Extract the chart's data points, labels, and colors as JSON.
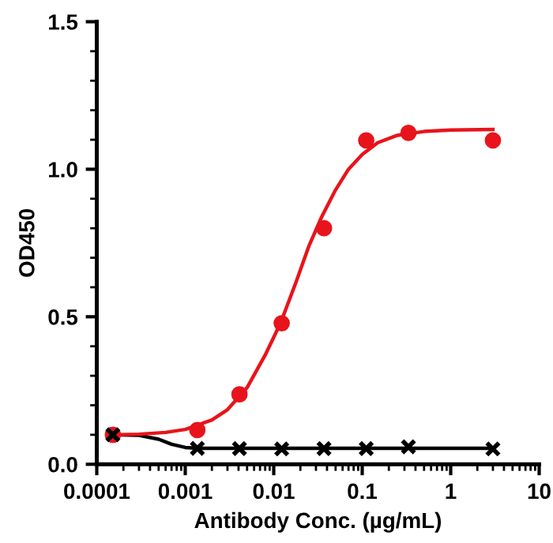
{
  "chart_data": {
    "type": "scatter",
    "xlabel": "Antibody Conc. (µg/mL)",
    "ylabel": "OD450",
    "log": "x",
    "grid": false,
    "legend": false,
    "xlim": [
      0.0001,
      10
    ],
    "xticks": [
      0.0001,
      0.001,
      0.01,
      0.1,
      1,
      10
    ],
    "ylim": [
      0,
      1.5
    ],
    "yticks": [
      {
        "value": 0,
        "label": "0.0"
      },
      {
        "value": 0.5,
        "label": "0.5"
      },
      {
        "value": 1,
        "label": "1.0"
      },
      {
        "value": 1.5,
        "label": "1.5"
      }
    ],
    "series": [
      {
        "type": "line",
        "color": "#000000",
        "marker": "none",
        "x": [
          0.00015,
          0.0003,
          0.0005,
          0.0007,
          0.001,
          0.0014,
          3
        ],
        "values": [
          0.1,
          0.098,
          0.085,
          0.068,
          0.057,
          0.054,
          0.054
        ]
      },
      {
        "type": "line",
        "color": "#e8141b",
        "marker": "none",
        "x": [
          0.00015,
          0.0003,
          0.0006,
          0.001,
          0.002,
          0.003,
          0.005,
          0.008,
          0.012,
          0.018,
          0.025,
          0.035,
          0.05,
          0.07,
          0.1,
          0.15,
          0.25,
          0.5,
          1,
          3
        ],
        "values": [
          0.1,
          0.102,
          0.108,
          0.118,
          0.15,
          0.185,
          0.26,
          0.37,
          0.48,
          0.62,
          0.74,
          0.84,
          0.93,
          1.0,
          1.05,
          1.09,
          1.115,
          1.128,
          1.133,
          1.135
        ]
      },
      {
        "color": "#e8141b",
        "marker": "circle",
        "x": [
          0.000152,
          0.00137,
          0.0041,
          0.0123,
          0.037,
          0.111,
          0.333,
          3
        ],
        "values": [
          0.1,
          0.116,
          0.237,
          0.478,
          0.8,
          1.098,
          1.123,
          1.098
        ]
      },
      {
        "color": "#000000",
        "marker": "cross",
        "x": [
          0.000152,
          0.00137,
          0.0041,
          0.0123,
          0.037,
          0.111,
          0.333,
          3
        ],
        "values": [
          0.1,
          0.054,
          0.053,
          0.052,
          0.053,
          0.053,
          0.059,
          0.052
        ]
      }
    ]
  }
}
